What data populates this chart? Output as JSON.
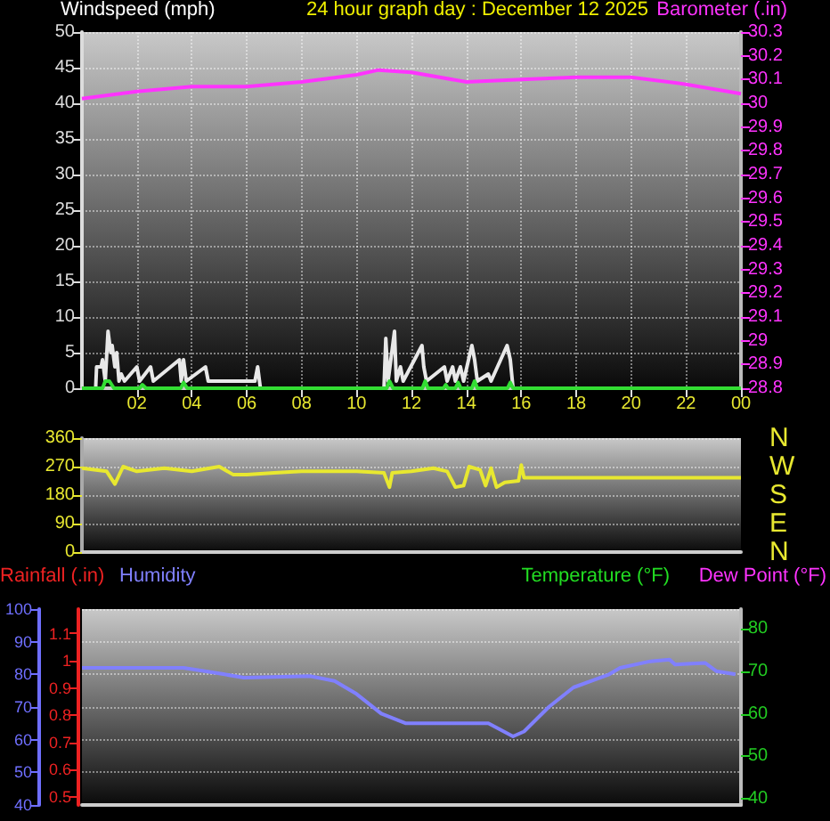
{
  "chart_data": [
    {
      "type": "line",
      "title": "24 hour graph day : December 12 2025",
      "ylabel": "Windspeed (mph)",
      "y2label": "Barometer (.in)",
      "xlim": [
        "2025-12-12T00:00",
        "2025-12-13T00:00"
      ],
      "xticks": [
        {
          "value": "2025-12-12T02:00",
          "label": "02"
        },
        {
          "value": "2025-12-12T04:00",
          "label": "04"
        },
        {
          "value": "2025-12-12T06:00",
          "label": "06"
        },
        {
          "value": "2025-12-12T08:00",
          "label": "08"
        },
        {
          "value": "2025-12-12T10:00",
          "label": "10"
        },
        {
          "value": "2025-12-12T12:00",
          "label": "12"
        },
        {
          "value": "2025-12-12T14:00",
          "label": "14"
        },
        {
          "value": "2025-12-12T16:00",
          "label": "16"
        },
        {
          "value": "2025-12-12T18:00",
          "label": "18"
        },
        {
          "value": "2025-12-12T20:00",
          "label": "20"
        },
        {
          "value": "2025-12-12T22:00",
          "label": "22"
        },
        {
          "value": "2025-12-13T00:00",
          "label": "00"
        }
      ],
      "ylim": [
        0,
        50
      ],
      "yticks": [
        0,
        5,
        10,
        15,
        20,
        25,
        30,
        35,
        40,
        45,
        50
      ],
      "y2lim": [
        28.8,
        30.3
      ],
      "y2ticks": [
        28.8,
        28.9,
        29,
        29.1,
        29.2,
        29.3,
        29.4,
        29.5,
        29.6,
        29.7,
        29.8,
        29.9,
        30,
        30.1,
        30.2,
        30.3
      ],
      "grid": true,
      "marker": "none",
      "series": [
        {
          "color": "#e8e8e8",
          "x": [
            "2025-12-12T00:30",
            "2025-12-12T00:32",
            "2025-12-12T00:42",
            "2025-12-12T00:45",
            "2025-12-12T00:51",
            "2025-12-12T00:57",
            "2025-12-12T01:03",
            "2025-12-12T01:06",
            "2025-12-12T01:12",
            "2025-12-12T01:16",
            "2025-12-12T01:21",
            "2025-12-12T01:26",
            "2025-12-12T01:33",
            "2025-12-12T02:00",
            "2025-12-12T02:06",
            "2025-12-12T02:30",
            "2025-12-12T02:36",
            "2025-12-12T03:33",
            "2025-12-12T03:37",
            "2025-12-12T03:42",
            "2025-12-12T03:48",
            "2025-12-12T04:30",
            "2025-12-12T04:36",
            "2025-12-12T05:06",
            "2025-12-12T06:18",
            "2025-12-12T06:24",
            "2025-12-12T06:30",
            "2025-12-12T11:00",
            "2025-12-12T11:04",
            "2025-12-12T11:09",
            "2025-12-12T11:23",
            "2025-12-12T11:27",
            "2025-12-12T11:36",
            "2025-12-12T11:42",
            "2025-12-12T12:23",
            "2025-12-12T12:27",
            "2025-12-12T12:33",
            "2025-12-12T13:12",
            "2025-12-12T13:18",
            "2025-12-12T13:30",
            "2025-12-12T13:36",
            "2025-12-12T13:47",
            "2025-12-12T13:54",
            "2025-12-12T14:12",
            "2025-12-12T14:18",
            "2025-12-12T14:24",
            "2025-12-12T14:48",
            "2025-12-12T14:54",
            "2025-12-12T15:29",
            "2025-12-12T15:36",
            "2025-12-12T15:42"
          ],
          "values": [
            0,
            3,
            3,
            4,
            1,
            8,
            5,
            6,
            3,
            5,
            1,
            2,
            1,
            3,
            1,
            3,
            1,
            4,
            1,
            4,
            1,
            3,
            1,
            1,
            1,
            3,
            0,
            0,
            7,
            1,
            8,
            1,
            3,
            1,
            6,
            3,
            1,
            3,
            1,
            3,
            1,
            3,
            1,
            6,
            4,
            1,
            2,
            1,
            6,
            4,
            0
          ]
        },
        {
          "color": "#33dd33",
          "x": [
            "2025-12-12T00:00",
            "2025-12-12T00:45",
            "2025-12-12T00:51",
            "2025-12-12T01:00",
            "2025-12-12T01:10",
            "2025-12-12T02:06",
            "2025-12-12T02:12",
            "2025-12-12T02:20",
            "2025-12-12T03:36",
            "2025-12-12T03:42",
            "2025-12-12T03:50",
            "2025-12-12T11:06",
            "2025-12-12T11:12",
            "2025-12-12T11:20",
            "2025-12-12T12:24",
            "2025-12-12T12:30",
            "2025-12-12T12:36",
            "2025-12-12T13:10",
            "2025-12-12T13:15",
            "2025-12-12T13:20",
            "2025-12-12T13:36",
            "2025-12-12T13:42",
            "2025-12-12T13:48",
            "2025-12-12T14:12",
            "2025-12-12T14:18",
            "2025-12-12T14:24",
            "2025-12-12T15:30",
            "2025-12-12T15:36",
            "2025-12-12T15:42",
            "2025-12-13T00:00"
          ],
          "values": [
            0,
            0,
            1,
            1,
            0,
            0,
            0.5,
            0,
            0,
            0.8,
            0,
            0,
            1,
            0,
            0,
            1,
            0,
            0,
            0.5,
            0,
            0,
            0.8,
            0,
            0,
            1,
            0,
            0,
            0.8,
            0,
            0
          ]
        },
        {
          "color": "#ff33ff",
          "axis": "y2",
          "x": [
            "2025-12-12T00:00",
            "2025-12-12T02:00",
            "2025-12-12T04:00",
            "2025-12-12T06:00",
            "2025-12-12T08:00",
            "2025-12-12T10:00",
            "2025-12-12T10:48",
            "2025-12-12T12:00",
            "2025-12-12T14:00",
            "2025-12-12T16:00",
            "2025-12-12T18:00",
            "2025-12-12T20:00",
            "2025-12-12T22:00",
            "2025-12-13T00:00"
          ],
          "values": [
            30.02,
            30.05,
            30.07,
            30.07,
            30.09,
            30.12,
            30.14,
            30.13,
            30.09,
            30.1,
            30.11,
            30.11,
            30.08,
            30.04
          ]
        }
      ]
    },
    {
      "type": "line",
      "xlim": [
        "2025-12-12T00:00",
        "2025-12-13T00:00"
      ],
      "ylim": [
        0,
        360
      ],
      "yticks": [
        0,
        90,
        180,
        270,
        360
      ],
      "annotations": [
        "N",
        "W",
        "S",
        "E",
        "N"
      ],
      "tick_labels": "y",
      "grid": true,
      "marker": "none",
      "series": [
        {
          "color": "#e8e830",
          "x": [
            "2025-12-12T00:00",
            "2025-12-12T00:54",
            "2025-12-12T01:12",
            "2025-12-12T01:30",
            "2025-12-12T02:00",
            "2025-12-12T03:00",
            "2025-12-12T04:00",
            "2025-12-12T05:00",
            "2025-12-12T05:30",
            "2025-12-12T06:00",
            "2025-12-12T07:00",
            "2025-12-12T08:00",
            "2025-12-12T10:00",
            "2025-12-12T11:00",
            "2025-12-12T11:12",
            "2025-12-12T11:18",
            "2025-12-12T12:00",
            "2025-12-12T12:48",
            "2025-12-12T13:18",
            "2025-12-12T13:36",
            "2025-12-12T13:54",
            "2025-12-12T14:06",
            "2025-12-12T14:30",
            "2025-12-12T14:42",
            "2025-12-12T14:54",
            "2025-12-12T15:06",
            "2025-12-12T15:24",
            "2025-12-12T15:54",
            "2025-12-12T16:00",
            "2025-12-12T16:06",
            "2025-12-13T00:00"
          ],
          "values": [
            265,
            255,
            215,
            270,
            255,
            265,
            255,
            270,
            245,
            245,
            250,
            255,
            255,
            250,
            205,
            250,
            255,
            265,
            255,
            205,
            210,
            270,
            260,
            210,
            265,
            205,
            220,
            225,
            275,
            235,
            235
          ]
        }
      ]
    },
    {
      "type": "line",
      "ylabel": "Humidity",
      "y2label": "Temperature (°F)",
      "y3label": "Rainfall (.in)",
      "annotations": [
        "Dew Point (°F)"
      ],
      "xlim": [
        "2025-12-12T00:00",
        "2025-12-13T00:00"
      ],
      "ylim": [
        40,
        100
      ],
      "yticks": [
        40,
        50,
        60,
        70,
        80,
        90,
        100
      ],
      "y2lim": [
        38.6,
        84.6
      ],
      "y2ticks": [
        40,
        50,
        60,
        70,
        80
      ],
      "y3lim": [
        0.47,
        1.19
      ],
      "y3ticks": [
        0.5,
        0.6,
        0.7,
        0.8,
        0.9,
        1,
        1.1
      ],
      "tick_labels": "y",
      "grid": true,
      "marker": "none",
      "series": [
        {
          "color": "#8080ff",
          "x": [
            "2025-12-12T00:00",
            "2025-12-12T03:42",
            "2025-12-12T05:12",
            "2025-12-12T05:54",
            "2025-12-12T08:18",
            "2025-12-12T09:12",
            "2025-12-12T10:00",
            "2025-12-12T10:54",
            "2025-12-12T11:48",
            "2025-12-12T13:30",
            "2025-12-12T14:48",
            "2025-12-12T15:42",
            "2025-12-12T16:06",
            "2025-12-12T17:00",
            "2025-12-12T17:54",
            "2025-12-12T19:12",
            "2025-12-12T19:36",
            "2025-12-12T20:42",
            "2025-12-12T21:24",
            "2025-12-12T21:36",
            "2025-12-12T22:42",
            "2025-12-12T23:06",
            "2025-12-12T23:48"
          ],
          "values": [
            82,
            82,
            80,
            79,
            79.5,
            78,
            74,
            68,
            65,
            65,
            65,
            61,
            62.5,
            70,
            76,
            80,
            82,
            84,
            84.5,
            83,
            83.5,
            81,
            80
          ]
        }
      ]
    }
  ]
}
